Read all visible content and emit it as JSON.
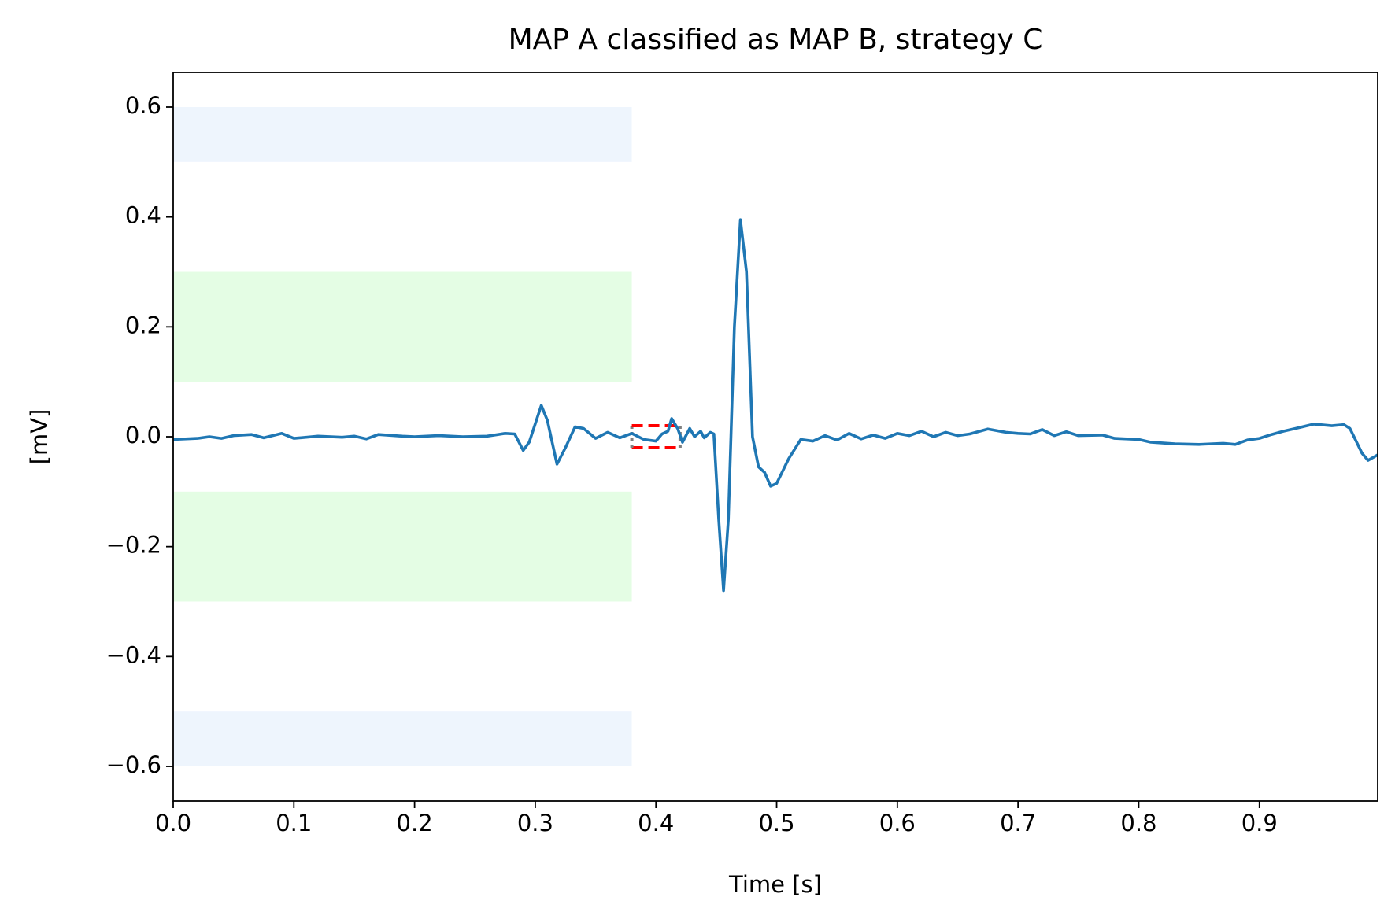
{
  "chart_data": {
    "type": "line",
    "title": "MAP A classified as MAP B, strategy C",
    "xlabel": "Time [s]",
    "ylabel": "[mV]",
    "xlim": [
      0,
      0.998
    ],
    "ylim": [
      -0.663,
      0.663
    ],
    "xticks": [
      {
        "value": 0,
        "label": "0.0"
      },
      0.1,
      0.2,
      0.3,
      0.4,
      0.5,
      0.6,
      0.7,
      0.8,
      0.9
    ],
    "yticks": [
      {
        "value": -0.6,
        "label": "−0.6"
      },
      {
        "value": -0.4,
        "label": "−0.4"
      },
      {
        "value": -0.2,
        "label": "−0.2"
      },
      {
        "value": 0,
        "label": "0.0"
      },
      0.2,
      0.4,
      0.6
    ],
    "bands": [
      {
        "x": [
          0,
          0.38
        ],
        "y": [
          0.5,
          0.6
        ],
        "color": "#eef5fd"
      },
      {
        "x": [
          0,
          0.38
        ],
        "y": [
          0.1,
          0.3
        ],
        "color": "#e4fde4"
      },
      {
        "x": [
          0,
          0.38
        ],
        "y": [
          -0.3,
          -0.1
        ],
        "color": "#e4fde4"
      },
      {
        "x": [
          0,
          0.38
        ],
        "y": [
          -0.6,
          -0.5
        ],
        "color": "#eef5fd"
      }
    ],
    "box": {
      "x": [
        0.38,
        0.42
      ],
      "y": [
        -0.02,
        0.02
      ],
      "color": "#ff0000",
      "side_color": "#808080"
    },
    "series": [
      {
        "color": "#1f77b4",
        "x": [
          0,
          0.02,
          0.03,
          0.04,
          0.05,
          0.065,
          0.075,
          0.09,
          0.1,
          0.12,
          0.14,
          0.15,
          0.16,
          0.17,
          0.19,
          0.2,
          0.22,
          0.24,
          0.26,
          0.275,
          0.283,
          0.29,
          0.295,
          0.305,
          0.31,
          0.318,
          0.325,
          0.333,
          0.34,
          0.35,
          0.36,
          0.37,
          0.38,
          0.39,
          0.4,
          0.405,
          0.41,
          0.413,
          0.418,
          0.422,
          0.428,
          0.432,
          0.437,
          0.44,
          0.445,
          0.448,
          0.452,
          0.456,
          0.46,
          0.465,
          0.47,
          0.475,
          0.48,
          0.485,
          0.49,
          0.495,
          0.5,
          0.51,
          0.52,
          0.53,
          0.54,
          0.55,
          0.56,
          0.57,
          0.58,
          0.59,
          0.6,
          0.61,
          0.62,
          0.63,
          0.64,
          0.65,
          0.66,
          0.675,
          0.69,
          0.7,
          0.71,
          0.72,
          0.73,
          0.74,
          0.75,
          0.77,
          0.78,
          0.8,
          0.81,
          0.83,
          0.85,
          0.87,
          0.88,
          0.89,
          0.9,
          0.91,
          0.92,
          0.93,
          0.945,
          0.96,
          0.97,
          0.975,
          0.985,
          0.99,
          0.998
        ],
        "values": [
          -0.005,
          -0.003,
          0,
          -0.003,
          0.002,
          0.004,
          -0.002,
          0.006,
          -0.003,
          0.001,
          -0.001,
          0.001,
          -0.004,
          0.004,
          0.001,
          0,
          0.002,
          0,
          0.001,
          0.006,
          0.005,
          -0.025,
          -0.01,
          0.057,
          0.03,
          -0.05,
          -0.02,
          0.018,
          0.015,
          -0.003,
          0.008,
          -0.002,
          0.006,
          -0.005,
          -0.008,
          0.005,
          0.01,
          0.033,
          0.015,
          -0.01,
          0.015,
          0,
          0.01,
          -0.002,
          0.008,
          0.005,
          -0.15,
          -0.28,
          -0.15,
          0.2,
          0.395,
          0.3,
          0,
          -0.055,
          -0.065,
          -0.09,
          -0.085,
          -0.04,
          -0.005,
          -0.008,
          0.002,
          -0.006,
          0.006,
          -0.004,
          0.003,
          -0.003,
          0.006,
          0.002,
          0.01,
          0,
          0.008,
          0.002,
          0.005,
          0.014,
          0.008,
          0.006,
          0.005,
          0.013,
          0.002,
          0.009,
          0.002,
          0.003,
          -0.003,
          -0.005,
          -0.01,
          -0.013,
          -0.014,
          -0.012,
          -0.014,
          -0.006,
          -0.003,
          0.004,
          0.01,
          0.015,
          0.023,
          0.02,
          0.022,
          0.015,
          -0.03,
          -0.043,
          -0.033
        ]
      }
    ]
  }
}
